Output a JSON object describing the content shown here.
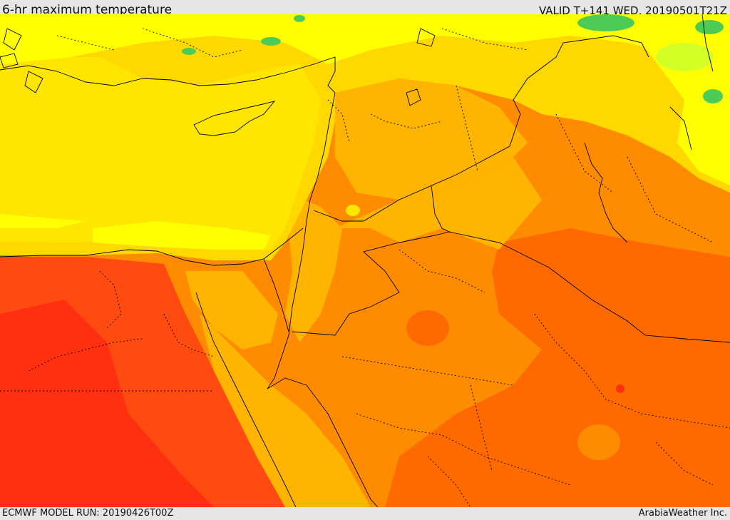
{
  "header": {
    "title": "6-hr maximum temperature",
    "valid": "VALID T+141 WED, 20190501T21Z"
  },
  "footer": {
    "model_run": "ECMWF MODEL RUN: 20190426T00Z",
    "credit": "ArabiaWeather Inc."
  },
  "map": {
    "field": "maximum-temperature",
    "palette": {
      "green": "#4ccc55",
      "light_green": "#a8f03a",
      "yellow": "#ffff00",
      "gold": "#ffd800",
      "amber": "#ffb400",
      "orange": "#ff8c00",
      "dark_orange": "#ff6a00",
      "red_orange": "#ff4a10",
      "red": "#ff3010"
    }
  }
}
